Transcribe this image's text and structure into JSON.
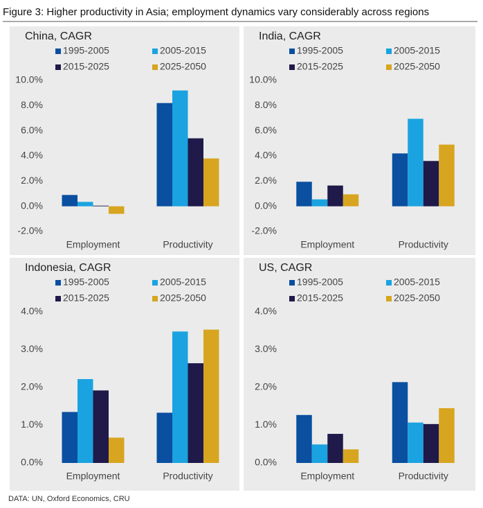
{
  "title": "Figure 3: Higher productivity in Asia; employment dynamics vary considerably across regions",
  "source": "DATA: UN, Oxford Economics, CRU",
  "chart_data": [
    {
      "type": "bar",
      "title": "China, CAGR",
      "categories": [
        "Employment",
        "Productivity"
      ],
      "series": [
        {
          "name": "1995-2005",
          "color": "#0a4fa0",
          "values": [
            0.9,
            8.2
          ]
        },
        {
          "name": "2005-2015",
          "color": "#1aa3e0",
          "values": [
            0.35,
            9.2
          ]
        },
        {
          "name": "2015-2025",
          "color": "#1f1a4a",
          "values": [
            0.05,
            5.4
          ]
        },
        {
          "name": "2025-2050",
          "color": "#d7a520",
          "values": [
            -0.6,
            3.8
          ]
        }
      ],
      "ylim": [
        -2,
        10
      ],
      "yticks": [
        {
          "value": -2,
          "label": "-2.0%"
        },
        {
          "value": 0,
          "label": "0.0%"
        },
        {
          "value": 2,
          "label": "2.0%"
        },
        {
          "value": 4,
          "label": "4.0%"
        },
        {
          "value": 6,
          "label": "6.0%"
        },
        {
          "value": 8,
          "label": "8.0%"
        },
        {
          "value": 10,
          "label": "10.0%"
        }
      ]
    },
    {
      "type": "bar",
      "title": "India, CAGR",
      "categories": [
        "Employment",
        "Productivity"
      ],
      "series": [
        {
          "name": "1995-2005",
          "color": "#0a4fa0",
          "values": [
            1.95,
            4.2
          ]
        },
        {
          "name": "2005-2015",
          "color": "#1aa3e0",
          "values": [
            0.55,
            6.95
          ]
        },
        {
          "name": "2015-2025",
          "color": "#1f1a4a",
          "values": [
            1.65,
            3.6
          ]
        },
        {
          "name": "2025-2050",
          "color": "#d7a520",
          "values": [
            0.95,
            4.9
          ]
        }
      ],
      "ylim": [
        -2,
        10
      ],
      "yticks": [
        {
          "value": -2,
          "label": "-2.0%"
        },
        {
          "value": 0,
          "label": "0.0%"
        },
        {
          "value": 2,
          "label": "2.0%"
        },
        {
          "value": 4,
          "label": "4.0%"
        },
        {
          "value": 6,
          "label": "6.0%"
        },
        {
          "value": 8,
          "label": "8.0%"
        },
        {
          "value": 10,
          "label": "10.0%"
        }
      ]
    },
    {
      "type": "bar",
      "title": "Indonesia, CAGR",
      "categories": [
        "Employment",
        "Productivity"
      ],
      "series": [
        {
          "name": "1995-2005",
          "color": "#0a4fa0",
          "values": [
            1.35,
            1.33
          ]
        },
        {
          "name": "2005-2015",
          "color": "#1aa3e0",
          "values": [
            2.22,
            3.48
          ]
        },
        {
          "name": "2015-2025",
          "color": "#1f1a4a",
          "values": [
            1.92,
            2.64
          ]
        },
        {
          "name": "2025-2050",
          "color": "#d7a520",
          "values": [
            0.67,
            3.53
          ]
        }
      ],
      "ylim": [
        0,
        4
      ],
      "yticks": [
        {
          "value": 0,
          "label": "0.0%"
        },
        {
          "value": 1,
          "label": "1.0%"
        },
        {
          "value": 2,
          "label": "2.0%"
        },
        {
          "value": 3,
          "label": "3.0%"
        },
        {
          "value": 4,
          "label": "4.0%"
        }
      ]
    },
    {
      "type": "bar",
      "title": "US, CAGR",
      "categories": [
        "Employment",
        "Productivity"
      ],
      "series": [
        {
          "name": "1995-2005",
          "color": "#0a4fa0",
          "values": [
            1.27,
            2.14
          ]
        },
        {
          "name": "2005-2015",
          "color": "#1aa3e0",
          "values": [
            0.49,
            1.07
          ]
        },
        {
          "name": "2015-2025",
          "color": "#1f1a4a",
          "values": [
            0.77,
            1.03
          ]
        },
        {
          "name": "2025-2050",
          "color": "#d7a520",
          "values": [
            0.36,
            1.45
          ]
        }
      ],
      "ylim": [
        0,
        4
      ],
      "yticks": [
        {
          "value": 0,
          "label": "0.0%"
        },
        {
          "value": 1,
          "label": "1.0%"
        },
        {
          "value": 2,
          "label": "2.0%"
        },
        {
          "value": 3,
          "label": "3.0%"
        },
        {
          "value": 4,
          "label": "4.0%"
        }
      ]
    }
  ]
}
